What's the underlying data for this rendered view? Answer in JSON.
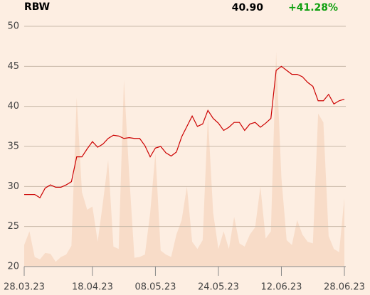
{
  "header": {
    "symbol": "RBW",
    "price": "40.90",
    "change": "+41.28%"
  },
  "chart_data": {
    "type": "line",
    "categories": [
      "28.03.23",
      null,
      null,
      null,
      null,
      null,
      null,
      null,
      null,
      null,
      null,
      null,
      null,
      "18.04.23",
      null,
      null,
      null,
      null,
      null,
      null,
      null,
      null,
      null,
      null,
      null,
      "08.05.23",
      null,
      null,
      null,
      null,
      null,
      null,
      null,
      null,
      null,
      null,
      null,
      "24.05.23",
      null,
      null,
      null,
      null,
      null,
      null,
      null,
      null,
      null,
      null,
      null,
      "12.06.23",
      null,
      null,
      null,
      null,
      null,
      null,
      null,
      null,
      null,
      null,
      null,
      "28.06.23"
    ],
    "series": [
      {
        "color": "#f8dcc8",
        "fill": true,
        "values": [
          22.7,
          24.4,
          21.2,
          20.9,
          21.7,
          21.6,
          20.6,
          21.2,
          21.5,
          22.6,
          41.1,
          29.3,
          27.1,
          27.5,
          23.1,
          28.0,
          33.3,
          22.5,
          22.2,
          43.3,
          31.5,
          21.1,
          21.2,
          21.5,
          26.7,
          34.2,
          22.0,
          21.5,
          21.2,
          24.0,
          25.8,
          30.0,
          23.1,
          22.2,
          23.3,
          38.8,
          26.7,
          22.2,
          24.4,
          22.2,
          26.2,
          22.9,
          22.5,
          24.0,
          24.9,
          30.0,
          23.5,
          24.4,
          46.8,
          31.1,
          23.3,
          22.7,
          25.8,
          24.0,
          23.1,
          22.9,
          39.1,
          38.0,
          23.8,
          22.2,
          21.8,
          28.6
        ]
      },
      {
        "color": "#cc0000",
        "values": [
          29.0,
          29.0,
          29.0,
          28.6,
          29.8,
          30.2,
          29.9,
          29.9,
          30.2,
          30.6,
          33.7,
          33.7,
          34.7,
          35.6,
          34.9,
          35.3,
          36.0,
          36.4,
          36.3,
          36.0,
          36.1,
          36.0,
          36.0,
          35.1,
          33.7,
          34.8,
          35.0,
          34.2,
          33.8,
          34.3,
          36.2,
          37.5,
          38.8,
          37.5,
          37.8,
          39.5,
          38.5,
          37.9,
          37.0,
          37.4,
          38.0,
          38.0,
          37.0,
          37.8,
          38.0,
          37.4,
          37.9,
          38.5,
          44.5,
          45.0,
          44.5,
          44.0,
          44.0,
          43.7,
          43.0,
          42.5,
          40.7,
          40.7,
          41.5,
          40.3,
          40.7,
          40.9
        ]
      }
    ],
    "ylim": [
      20,
      50
    ],
    "yticks": [
      20,
      25,
      30,
      35,
      40,
      45,
      50
    ],
    "grid": true
  }
}
